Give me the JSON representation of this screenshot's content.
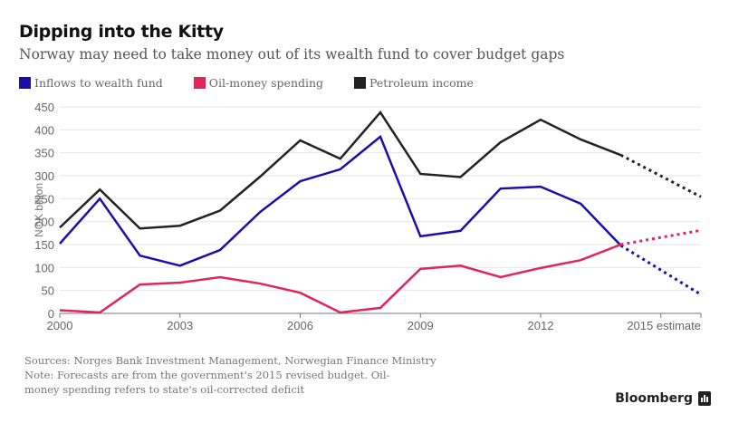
{
  "header": {
    "title": "Dipping into the Kitty",
    "subtitle": "Norway may need to take money out of its wealth fund to cover budget gaps"
  },
  "legend": [
    {
      "label": "Inflows to wealth fund",
      "color": "#1a0dab"
    },
    {
      "label": "Oil-money spending",
      "color": "#e0245e"
    },
    {
      "label": "Petroleum income",
      "color": "#222222"
    }
  ],
  "footer": {
    "sources": "Sources: Norges Bank Investment Management, Norwegian Finance Ministry",
    "note": "Note: Forecasts are from the government's 2015 revised budget. Oil-money spending refers to state's oil-corrected deficit"
  },
  "brand": {
    "name": "Bloomberg",
    "icon": "bloomberg-chart-icon"
  },
  "chart_data": {
    "type": "line",
    "title": "Dipping into the Kitty",
    "subtitle": "Norway may need to take money out of its wealth fund to cover budget gaps",
    "xlabel": "",
    "ylabel": "NOK billion",
    "ylim": [
      0,
      450
    ],
    "yticks": [
      0,
      50,
      100,
      150,
      200,
      250,
      300,
      350,
      400,
      450
    ],
    "xlim": [
      2000,
      2016
    ],
    "xticks": [
      {
        "value": 2000,
        "label": "2000"
      },
      {
        "value": 2003,
        "label": "2003"
      },
      {
        "value": 2006,
        "label": "2006"
      },
      {
        "value": 2009,
        "label": "2009"
      },
      {
        "value": 2012,
        "label": "2012"
      },
      {
        "value": 2015,
        "label": ""
      },
      {
        "value": 2016,
        "label": "2015 estimate"
      }
    ],
    "grid": true,
    "legend_position": "top-left",
    "x": [
      2000,
      2001,
      2002,
      2003,
      2004,
      2005,
      2006,
      2007,
      2008,
      2009,
      2010,
      2011,
      2012,
      2013,
      2014
    ],
    "estimate_x": [
      2014,
      2016
    ],
    "series": [
      {
        "name": "Inflows to wealth fund",
        "color": "#1a0dab",
        "values": [
          152,
          250,
          126,
          104,
          138,
          221,
          288,
          314,
          385,
          168,
          180,
          272,
          276,
          239,
          148
        ],
        "estimate": [
          148,
          41
        ]
      },
      {
        "name": "Oil-money spending",
        "color": "#e0245e",
        "values": [
          7,
          2,
          63,
          67,
          79,
          65,
          45,
          2,
          12,
          97,
          104,
          79,
          99,
          116,
          150
        ],
        "estimate": [
          150,
          181
        ]
      },
      {
        "name": "Petroleum income",
        "color": "#222222",
        "values": [
          187,
          270,
          185,
          191,
          224,
          298,
          377,
          337,
          438,
          304,
          297,
          373,
          422,
          379,
          345
        ],
        "estimate": [
          345,
          254
        ]
      }
    ]
  }
}
